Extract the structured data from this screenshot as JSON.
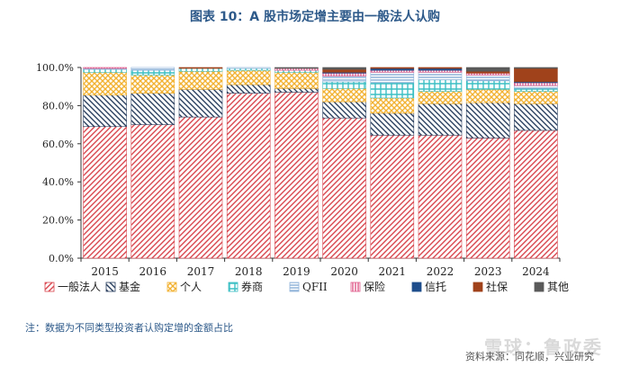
{
  "title": "图表 10：A 股市场定增主要由一般法人认购",
  "note": "注：数据为不同类型投资者认购定增的金额占比",
  "source": "资料来源：同花顺，兴业研究",
  "watermark": "雪球：鲁政委",
  "chart_data": {
    "type": "bar",
    "stacked": true,
    "categories": [
      "2015",
      "2016",
      "2017",
      "2018",
      "2019",
      "2020",
      "2021",
      "2022",
      "2023",
      "2024"
    ],
    "yticks": [
      "0.0%",
      "20.0%",
      "40.0%",
      "60.0%",
      "80.0%",
      "100.0%"
    ],
    "ylim": [
      0,
      100
    ],
    "series": [
      {
        "name": "一般法人",
        "color": "#d9474f",
        "pattern": "diag-right",
        "values": [
          69.0,
          70.0,
          74.0,
          86.5,
          87.0,
          73.5,
          64.5,
          64.5,
          63.0,
          67.0
        ]
      },
      {
        "name": "基金",
        "color": "#2a3f5f",
        "pattern": "diag-left",
        "values": [
          16.5,
          16.5,
          14.5,
          4.5,
          2.0,
          8.5,
          11.5,
          16.5,
          18.5,
          14.0
        ]
      },
      {
        "name": "个人",
        "color": "#f2b233",
        "pattern": "cross",
        "values": [
          12.0,
          9.5,
          9.5,
          7.5,
          8.5,
          7.0,
          8.0,
          6.5,
          7.0,
          6.5
        ]
      },
      {
        "name": "券商",
        "color": "#3bbfc4",
        "pattern": "grid",
        "values": [
          1.5,
          2.5,
          1.5,
          1.0,
          1.0,
          3.5,
          8.0,
          6.0,
          4.5,
          1.5
        ]
      },
      {
        "name": "QFII",
        "color": "#8fb3d9",
        "pattern": "hlines",
        "values": [
          0.5,
          1.5,
          0.0,
          0.5,
          0.0,
          3.0,
          5.5,
          4.0,
          3.0,
          1.5
        ]
      },
      {
        "name": "保险",
        "color": "#e05a8a",
        "pattern": "vlines",
        "values": [
          0.5,
          0.0,
          0.0,
          0.0,
          1.0,
          1.5,
          1.0,
          1.0,
          1.0,
          1.5
        ]
      },
      {
        "name": "信托",
        "color": "#1f4e8c",
        "pattern": "solid",
        "values": [
          0.0,
          0.0,
          0.0,
          0.0,
          0.0,
          0.5,
          1.0,
          1.0,
          0.0,
          0.5
        ]
      },
      {
        "name": "社保",
        "color": "#a0421b",
        "pattern": "solid",
        "values": [
          0.0,
          0.0,
          0.5,
          0.0,
          0.0,
          1.5,
          0.5,
          0.5,
          1.0,
          7.0
        ]
      },
      {
        "name": "其他",
        "color": "#5a5a5a",
        "pattern": "solid",
        "values": [
          0.0,
          0.0,
          0.0,
          0.0,
          0.5,
          1.0,
          0.0,
          0.0,
          2.0,
          0.5
        ]
      }
    ]
  }
}
